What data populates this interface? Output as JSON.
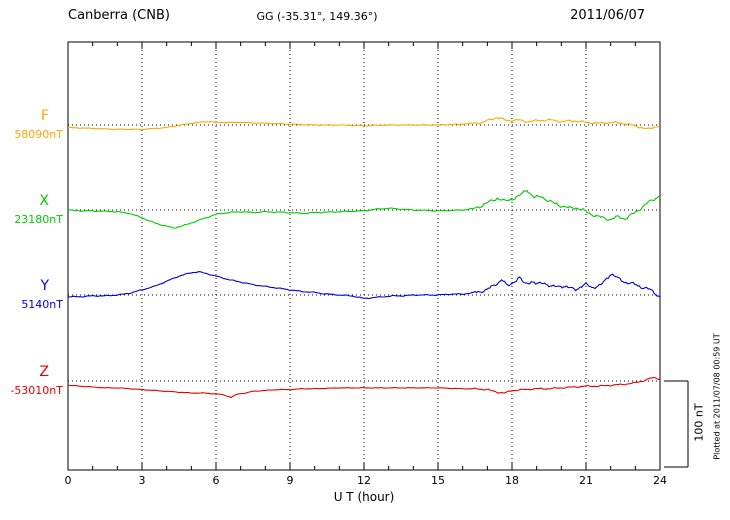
{
  "header": {
    "station": "Canberra (CNB)",
    "coords": "GG (-35.31°, 149.36°)",
    "date": "2011/06/07"
  },
  "xaxis": {
    "label": "U T (hour)",
    "ticks": [
      "0",
      "3",
      "6",
      "9",
      "12",
      "15",
      "18",
      "21",
      "24"
    ]
  },
  "scale_bar": {
    "label": "100 nT",
    "nT": 100
  },
  "footer_note": "Plotted at 2011/07/08 00:59 UT",
  "colors": {
    "frame": "#000000",
    "grid": "#000000",
    "background": "#ffffff"
  },
  "chart_data": {
    "type": "line",
    "title": "Canberra (CNB) magnetogram 2011/06/07",
    "xlabel": "U T (hour)",
    "x_range": [
      0,
      24
    ],
    "grid_hours": [
      3,
      6,
      9,
      12,
      15,
      18,
      21
    ],
    "storm_window": [
      16.5,
      24
    ],
    "scale_nT": 100,
    "series": [
      {
        "name": "F",
        "baseline_label": "58090nT",
        "baseline_nT": 58090,
        "color": "#FFA800",
        "noise_base": 0.5,
        "noise_storm": 1.5,
        "keypoints": [
          [
            0,
            -3
          ],
          [
            1,
            -4
          ],
          [
            2,
            -5
          ],
          [
            3,
            -5
          ],
          [
            4,
            -3
          ],
          [
            5,
            2
          ],
          [
            5.6,
            4
          ],
          [
            6.2,
            3
          ],
          [
            7,
            3
          ],
          [
            8,
            2
          ],
          [
            9,
            1
          ],
          [
            10,
            0
          ],
          [
            11,
            0
          ],
          [
            12,
            -1
          ],
          [
            13,
            0
          ],
          [
            14,
            0
          ],
          [
            15,
            0
          ],
          [
            16,
            1
          ],
          [
            16.8,
            3
          ],
          [
            17.4,
            9
          ],
          [
            17.8,
            5
          ],
          [
            18.2,
            6
          ],
          [
            18.6,
            4
          ],
          [
            19,
            5
          ],
          [
            19.5,
            6
          ],
          [
            20,
            4
          ],
          [
            20.5,
            5
          ],
          [
            21,
            3
          ],
          [
            21.5,
            2
          ],
          [
            22,
            3
          ],
          [
            22.5,
            2
          ],
          [
            23,
            -1
          ],
          [
            23.5,
            -5
          ],
          [
            23.8,
            -2
          ],
          [
            24,
            -1
          ]
        ]
      },
      {
        "name": "X",
        "baseline_label": "23180nT",
        "baseline_nT": 23180,
        "color": "#00CC00",
        "noise_base": 0.7,
        "noise_storm": 2.5,
        "keypoints": [
          [
            0,
            0
          ],
          [
            0.5,
            -1
          ],
          [
            1,
            -1
          ],
          [
            2,
            -2
          ],
          [
            2.5,
            -4
          ],
          [
            3,
            -9
          ],
          [
            3.5,
            -15
          ],
          [
            4,
            -19
          ],
          [
            4.3,
            -21
          ],
          [
            4.7,
            -18
          ],
          [
            5,
            -15
          ],
          [
            5.5,
            -10
          ],
          [
            6,
            -5
          ],
          [
            6.5,
            -3
          ],
          [
            7,
            -2
          ],
          [
            7.5,
            -3
          ],
          [
            8,
            -2
          ],
          [
            9,
            -3
          ],
          [
            9.5,
            -4
          ],
          [
            10,
            -3
          ],
          [
            11,
            -2
          ],
          [
            12,
            -1
          ],
          [
            12.5,
            1
          ],
          [
            13,
            2
          ],
          [
            13.5,
            1
          ],
          [
            14,
            0
          ],
          [
            15,
            -1
          ],
          [
            16,
            0
          ],
          [
            16.5,
            2
          ],
          [
            17,
            8
          ],
          [
            17.4,
            14
          ],
          [
            17.7,
            10
          ],
          [
            18,
            13
          ],
          [
            18.3,
            16
          ],
          [
            18.6,
            24
          ],
          [
            18.9,
            14
          ],
          [
            19.2,
            16
          ],
          [
            19.5,
            10
          ],
          [
            20,
            5
          ],
          [
            20.3,
            2
          ],
          [
            20.6,
            3
          ],
          [
            21,
            -2
          ],
          [
            21.5,
            -8
          ],
          [
            22,
            -11
          ],
          [
            22.3,
            -8
          ],
          [
            22.6,
            -10
          ],
          [
            23,
            -3
          ],
          [
            23.3,
            4
          ],
          [
            23.6,
            10
          ],
          [
            24,
            17
          ]
        ]
      },
      {
        "name": "Y",
        "baseline_label": "5140nT",
        "baseline_nT": 5140,
        "color": "#0000DD",
        "noise_base": 0.7,
        "noise_storm": 2.5,
        "keypoints": [
          [
            0,
            -2
          ],
          [
            0.5,
            -2
          ],
          [
            1,
            -1
          ],
          [
            1.5,
            -1
          ],
          [
            2,
            0
          ],
          [
            2.5,
            2
          ],
          [
            3,
            6
          ],
          [
            3.5,
            10
          ],
          [
            4,
            16
          ],
          [
            4.5,
            22
          ],
          [
            5,
            26
          ],
          [
            5.3,
            27
          ],
          [
            5.6,
            25
          ],
          [
            6,
            22
          ],
          [
            6.5,
            18
          ],
          [
            7,
            15
          ],
          [
            7.5,
            12
          ],
          [
            8,
            10
          ],
          [
            8.5,
            8
          ],
          [
            9,
            6
          ],
          [
            9.5,
            4
          ],
          [
            10,
            3
          ],
          [
            10.5,
            1
          ],
          [
            11,
            0
          ],
          [
            11.5,
            -1
          ],
          [
            12,
            -4
          ],
          [
            12.4,
            -3
          ],
          [
            12.8,
            -2
          ],
          [
            13.2,
            -1
          ],
          [
            13.6,
            -1
          ],
          [
            14,
            0
          ],
          [
            15,
            0
          ],
          [
            15.5,
            1
          ],
          [
            16,
            1
          ],
          [
            16.5,
            3
          ],
          [
            17,
            6
          ],
          [
            17.3,
            12
          ],
          [
            17.6,
            18
          ],
          [
            17.8,
            10
          ],
          [
            18,
            14
          ],
          [
            18.3,
            20
          ],
          [
            18.5,
            13
          ],
          [
            18.8,
            16
          ],
          [
            19,
            12
          ],
          [
            19.3,
            15
          ],
          [
            19.6,
            9
          ],
          [
            20,
            11
          ],
          [
            20.3,
            8
          ],
          [
            20.6,
            7
          ],
          [
            21,
            12
          ],
          [
            21.3,
            9
          ],
          [
            21.6,
            11
          ],
          [
            22,
            25
          ],
          [
            22.3,
            19
          ],
          [
            22.6,
            15
          ],
          [
            23,
            12
          ],
          [
            23.3,
            9
          ],
          [
            23.6,
            6
          ],
          [
            23.8,
            2
          ],
          [
            24,
            -2
          ]
        ]
      },
      {
        "name": "Z",
        "baseline_label": "-53010nT",
        "baseline_nT": -53010,
        "color": "#E80000",
        "noise_base": 0.4,
        "noise_storm": 1.0,
        "keypoints": [
          [
            0,
            -5
          ],
          [
            0.5,
            -6
          ],
          [
            1,
            -7
          ],
          [
            1.5,
            -8
          ],
          [
            2,
            -8
          ],
          [
            2.5,
            -9
          ],
          [
            3,
            -10
          ],
          [
            3.5,
            -11
          ],
          [
            4,
            -12
          ],
          [
            4.5,
            -13
          ],
          [
            5,
            -14
          ],
          [
            5.5,
            -14
          ],
          [
            6,
            -15
          ],
          [
            6.3,
            -16
          ],
          [
            6.6,
            -19
          ],
          [
            6.9,
            -15
          ],
          [
            7.2,
            -14
          ],
          [
            7.5,
            -12
          ],
          [
            8,
            -11
          ],
          [
            8.5,
            -10
          ],
          [
            9,
            -10
          ],
          [
            9.5,
            -9
          ],
          [
            10,
            -9
          ],
          [
            11,
            -8
          ],
          [
            12,
            -8
          ],
          [
            13,
            -8
          ],
          [
            14,
            -8
          ],
          [
            15,
            -8
          ],
          [
            16,
            -9
          ],
          [
            16.5,
            -9
          ],
          [
            17,
            -10
          ],
          [
            17.4,
            -13
          ],
          [
            17.7,
            -14
          ],
          [
            18,
            -11
          ],
          [
            18.5,
            -10
          ],
          [
            19,
            -9
          ],
          [
            19.5,
            -9
          ],
          [
            20,
            -8
          ],
          [
            20.5,
            -7
          ],
          [
            21,
            -6
          ],
          [
            21.5,
            -6
          ],
          [
            22,
            -5
          ],
          [
            22.5,
            -4
          ],
          [
            23,
            -2
          ],
          [
            23.3,
            0
          ],
          [
            23.6,
            3
          ],
          [
            23.8,
            4
          ],
          [
            24,
            2
          ]
        ]
      }
    ]
  }
}
